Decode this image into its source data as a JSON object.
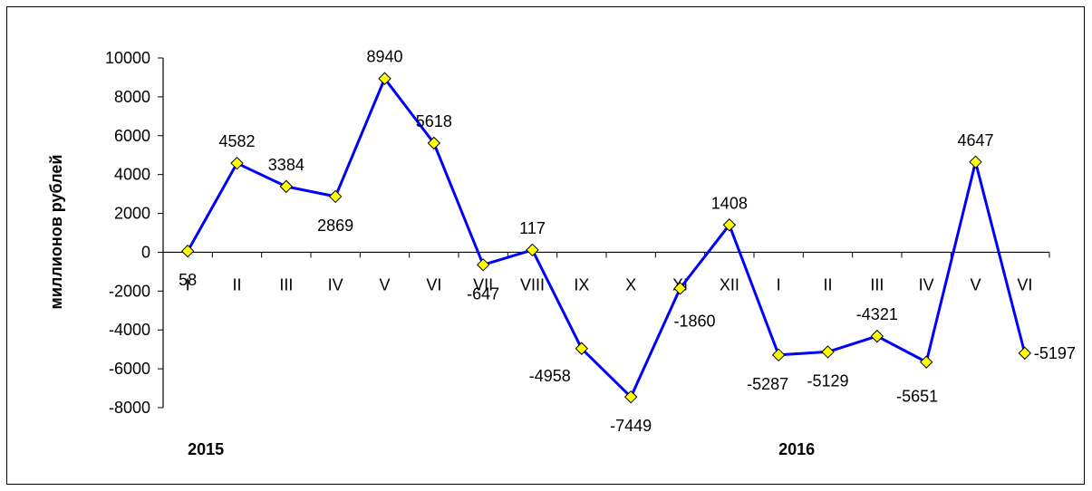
{
  "chart_data": {
    "type": "line",
    "title": "",
    "xlabel": "",
    "ylabel": "миллионов рублей",
    "ylim": [
      -8000,
      10000
    ],
    "y_ticks": [
      10000,
      8000,
      6000,
      4000,
      2000,
      0,
      -2000,
      -4000,
      -6000,
      -8000
    ],
    "tick_labels_y": [
      "10000",
      "8000",
      "6000",
      "4000",
      "2000",
      "0",
      "-2000",
      "-4000",
      "-6000",
      "-8000"
    ],
    "categories": [
      "I",
      "II",
      "III",
      "IV",
      "V",
      "VI",
      "VII",
      "VIII",
      "IX",
      "X",
      "XI",
      "XII",
      "I",
      "II",
      "III",
      "IV",
      "V",
      "VI"
    ],
    "values": [
      58,
      4582,
      3384,
      2869,
      8940,
      5618,
      -647,
      117,
      -4958,
      -7449,
      -1860,
      1408,
      -5287,
      -5129,
      -4321,
      -5651,
      4647,
      -5197
    ],
    "data_labels": [
      "58",
      "4582",
      "3384",
      "2869",
      "8940",
      "5618",
      "-647",
      "117",
      "-4958",
      "-7449",
      "-1860",
      "1408",
      "-5287",
      "-5129",
      "-4321",
      "-5651",
      "4647",
      "-5197"
    ],
    "year_labels": [
      "2015",
      "2016"
    ],
    "grid": false,
    "legend": "none",
    "line_color": "#0000FF",
    "marker_color": "#FFFF00",
    "marker_shape": "diamond"
  }
}
